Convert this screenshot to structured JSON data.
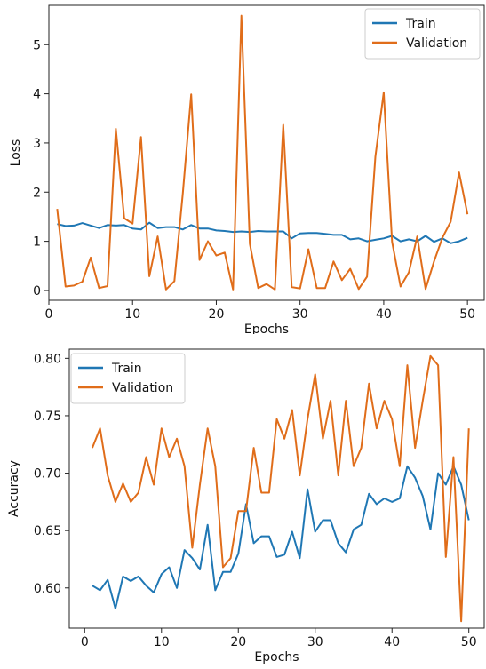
{
  "colors": {
    "train": "#1f77b4",
    "validation": "#e06d1a"
  },
  "chart_data": [
    {
      "type": "line",
      "xlabel": "Epochs",
      "ylabel": "Loss",
      "xlim": [
        0,
        52
      ],
      "ylim": [
        -0.2,
        5.8
      ],
      "xticks": [
        0,
        10,
        20,
        30,
        40,
        50
      ],
      "yticks": [
        0,
        1,
        2,
        3,
        4,
        5
      ],
      "legend_position": "top-right",
      "grid": false,
      "x": [
        1,
        2,
        3,
        4,
        5,
        6,
        7,
        8,
        9,
        10,
        11,
        12,
        13,
        14,
        15,
        16,
        17,
        18,
        19,
        20,
        21,
        22,
        23,
        24,
        25,
        26,
        27,
        28,
        29,
        30,
        31,
        32,
        33,
        34,
        35,
        36,
        37,
        38,
        39,
        40,
        41,
        42,
        43,
        44,
        45,
        46,
        47,
        48,
        49,
        50
      ],
      "series": [
        {
          "name": "Train",
          "color_key": "train",
          "values": [
            1.35,
            1.31,
            1.32,
            1.37,
            1.32,
            1.27,
            1.33,
            1.32,
            1.33,
            1.26,
            1.24,
            1.38,
            1.27,
            1.29,
            1.29,
            1.24,
            1.33,
            1.26,
            1.26,
            1.22,
            1.21,
            1.19,
            1.2,
            1.19,
            1.21,
            1.2,
            1.2,
            1.2,
            1.06,
            1.16,
            1.17,
            1.17,
            1.15,
            1.13,
            1.13,
            1.04,
            1.06,
            1.0,
            1.03,
            1.06,
            1.11,
            1.0,
            1.04,
            1.0,
            1.11,
            0.99,
            1.06,
            0.96,
            1.0,
            1.07
          ]
        },
        {
          "name": "Validation",
          "color_key": "validation",
          "values": [
            1.66,
            0.08,
            0.1,
            0.18,
            0.67,
            0.05,
            0.09,
            3.29,
            1.47,
            1.36,
            3.12,
            0.29,
            1.1,
            0.02,
            0.19,
            1.98,
            3.99,
            0.62,
            1.0,
            0.71,
            0.77,
            0.02,
            5.59,
            0.95,
            0.05,
            0.13,
            0.02,
            3.37,
            0.07,
            0.04,
            0.84,
            0.05,
            0.05,
            0.59,
            0.21,
            0.44,
            0.03,
            0.28,
            2.72,
            4.03,
            0.99,
            0.08,
            0.37,
            1.1,
            0.03,
            0.59,
            1.07,
            1.4,
            2.4,
            1.55
          ]
        }
      ]
    },
    {
      "type": "line",
      "xlabel": "Epochs",
      "ylabel": "Accuracy",
      "xlim": [
        -2,
        52
      ],
      "ylim": [
        0.565,
        0.808
      ],
      "xticks": [
        0,
        10,
        20,
        30,
        40,
        50
      ],
      "yticks": [
        0.6,
        0.65,
        0.7,
        0.75,
        0.8
      ],
      "ytick_labels": [
        "0.60",
        "0.65",
        "0.70",
        "0.75",
        "0.80"
      ],
      "legend_position": "top-left",
      "grid": false,
      "x": [
        1,
        2,
        3,
        4,
        5,
        6,
        7,
        8,
        9,
        10,
        11,
        12,
        13,
        14,
        15,
        16,
        17,
        18,
        19,
        20,
        21,
        22,
        23,
        24,
        25,
        26,
        27,
        28,
        29,
        30,
        31,
        32,
        33,
        34,
        35,
        36,
        37,
        38,
        39,
        40,
        41,
        42,
        43,
        44,
        45,
        46,
        47,
        48,
        49,
        50
      ],
      "series": [
        {
          "name": "Train",
          "color_key": "train",
          "values": [
            0.602,
            0.598,
            0.607,
            0.582,
            0.61,
            0.606,
            0.61,
            0.602,
            0.596,
            0.612,
            0.618,
            0.6,
            0.633,
            0.626,
            0.616,
            0.655,
            0.598,
            0.614,
            0.614,
            0.63,
            0.673,
            0.639,
            0.645,
            0.645,
            0.627,
            0.629,
            0.649,
            0.626,
            0.686,
            0.649,
            0.659,
            0.659,
            0.639,
            0.631,
            0.651,
            0.655,
            0.682,
            0.673,
            0.678,
            0.675,
            0.678,
            0.706,
            0.696,
            0.68,
            0.651,
            0.7,
            0.69,
            0.706,
            0.69,
            0.659
          ]
        },
        {
          "name": "Validation",
          "color_key": "validation",
          "values": [
            0.722,
            0.739,
            0.698,
            0.675,
            0.691,
            0.675,
            0.683,
            0.714,
            0.69,
            0.739,
            0.714,
            0.73,
            0.706,
            0.635,
            0.69,
            0.739,
            0.706,
            0.618,
            0.626,
            0.667,
            0.667,
            0.722,
            0.683,
            0.683,
            0.747,
            0.73,
            0.755,
            0.698,
            0.747,
            0.786,
            0.73,
            0.763,
            0.698,
            0.763,
            0.706,
            0.722,
            0.778,
            0.739,
            0.763,
            0.747,
            0.706,
            0.794,
            0.722,
            0.763,
            0.802,
            0.794,
            0.627,
            0.714,
            0.571,
            0.739
          ]
        }
      ]
    }
  ]
}
